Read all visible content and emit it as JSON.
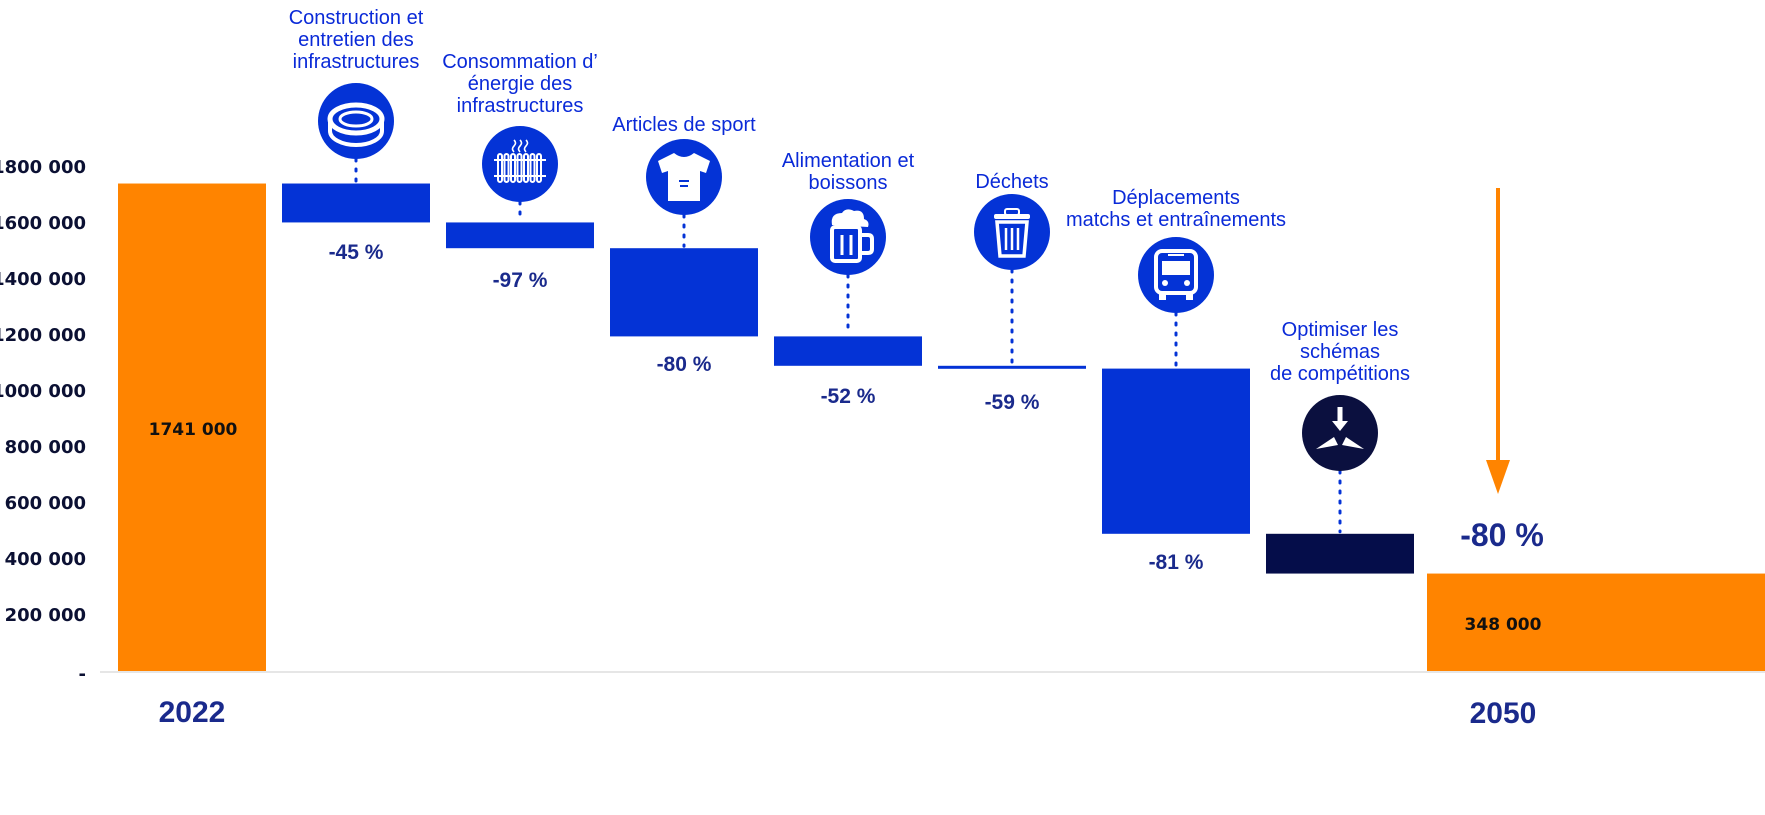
{
  "colors": {
    "total": "#ff8400",
    "decrease": "#0433d6",
    "last_decrease": "#050d4a",
    "icon_bg": "#0433d6",
    "icon_bg_dark": "#0b103f",
    "text_blue": "#0a2ad8",
    "text_dark_blue": "#1a2a8c",
    "axis": "#dddddd"
  },
  "chart_data": {
    "type": "waterfall",
    "y_ticks": [
      "-",
      "200 000",
      "400 000",
      "600 000",
      "800 000",
      "1000 000",
      "1200 000",
      "1400 000",
      "1600 000",
      "1800 000"
    ],
    "ylim": [
      0,
      1800000
    ],
    "start": {
      "label": "2022",
      "value": 1741000,
      "value_label": "1741 000"
    },
    "end": {
      "label": "2050",
      "value": 348000,
      "value_label": "348 000",
      "total_change": "-80 %"
    },
    "steps": [
      {
        "label": [
          "Construction et",
          "entretien des",
          "infrastructures"
        ],
        "icon": "stadium-icon",
        "top": 1741000,
        "bottom": 1602000,
        "pct": "-45 %"
      },
      {
        "label": [
          "Consommation d’",
          "énergie des",
          "infrastructures"
        ],
        "icon": "radiator-icon",
        "top": 1602000,
        "bottom": 1510000,
        "pct": "-97 %"
      },
      {
        "label": [
          "Articles de sport"
        ],
        "icon": "tshirt-icon",
        "top": 1510000,
        "bottom": 1195000,
        "pct": "-80 %"
      },
      {
        "label": [
          "Alimentation et",
          "boissons"
        ],
        "icon": "beer-mug-icon",
        "top": 1195000,
        "bottom": 1090000,
        "pct": "-52 %"
      },
      {
        "label": [
          "Déchets"
        ],
        "icon": "trash-icon",
        "top": 1090000,
        "bottom": 1080000,
        "pct": "-59 %"
      },
      {
        "label": [
          "Déplacements",
          "matchs et entraînements"
        ],
        "icon": "bus-icon",
        "top": 1080000,
        "bottom": 490000,
        "pct": "-81 %"
      },
      {
        "label": [
          "Optimiser les",
          "schémas",
          "de compétitions"
        ],
        "icon": "merge-arrows-icon",
        "top": 490000,
        "bottom": 348000,
        "pct": ""
      }
    ]
  }
}
